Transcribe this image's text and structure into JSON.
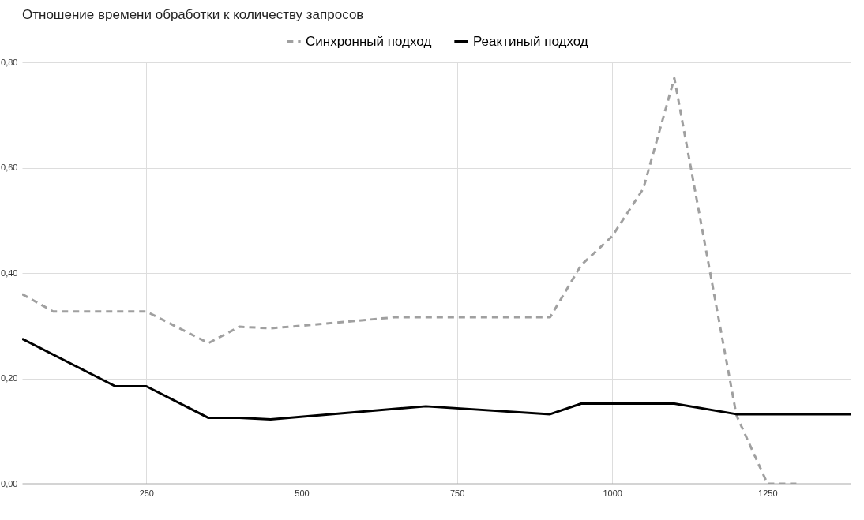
{
  "chart_data": {
    "type": "line",
    "title": "Отношение времени обработки к количеству запросов",
    "xlim": [
      50,
      1385
    ],
    "xticks": [
      250,
      500,
      750,
      1000,
      1250
    ],
    "ylim": [
      0,
      0.8
    ],
    "yticks": [
      {
        "value": 0,
        "label": "0,00"
      },
      {
        "value": 0.2,
        "label": "0,20"
      },
      {
        "value": 0.4,
        "label": "0,40"
      },
      {
        "value": 0.6,
        "label": "0,60"
      },
      {
        "value": 0.8,
        "label": "0,80"
      }
    ],
    "grid": true,
    "legend": "top",
    "marker": "none",
    "series": [
      {
        "name": "Синхронный подход",
        "color": "#a0a0a0",
        "line_style": "dashed",
        "x": [
          50,
          100,
          250,
          350,
          400,
          450,
          500,
          650,
          900,
          950,
          1000,
          1050,
          1100,
          1200,
          1250,
          1300
        ],
        "values": [
          0.36,
          0.327,
          0.327,
          0.267,
          0.298,
          0.295,
          0.3,
          0.316,
          0.316,
          0.415,
          0.47,
          0.56,
          0.77,
          0.13,
          0,
          0
        ]
      },
      {
        "name": "Реактиный подход",
        "color": "#000000",
        "line_style": "solid",
        "x": [
          50,
          200,
          250,
          350,
          400,
          450,
          700,
          900,
          950,
          1100,
          1200,
          1385
        ],
        "values": [
          0.275,
          0.185,
          0.185,
          0.125,
          0.125,
          0.122,
          0.147,
          0.132,
          0.152,
          0.152,
          0.132,
          0.132
        ]
      }
    ]
  }
}
